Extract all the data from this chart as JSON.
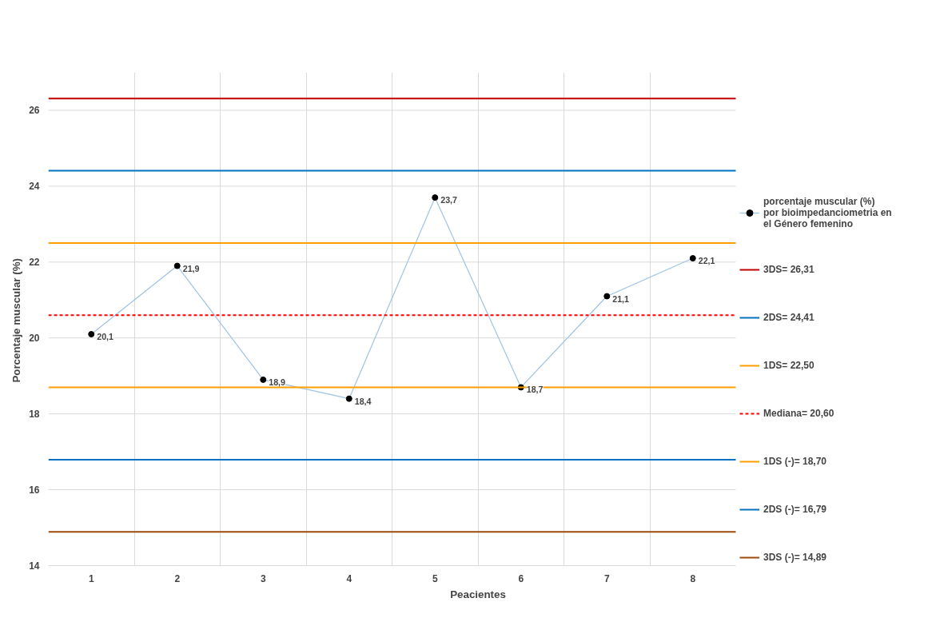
{
  "chart_data": {
    "type": "line",
    "xlabel": "Peacientes",
    "ylabel": "Porcentaje  muscular (%)",
    "categories": [
      "1",
      "2",
      "3",
      "4",
      "5",
      "6",
      "7",
      "8"
    ],
    "series": [
      {
        "name": "porcentaje muscular (%)  por bioimpedanciometria en el Género femenino",
        "color": "#9dc3e6",
        "values": [
          20.1,
          21.9,
          18.9,
          18.4,
          23.7,
          18.7,
          21.1,
          22.1
        ],
        "value_labels": [
          "20,1",
          "21,9",
          "18,9",
          "18,4",
          "23,7",
          "18,7",
          "21,1",
          "22,1"
        ]
      }
    ],
    "ref_lines": [
      {
        "axis": "y",
        "value": 26.31,
        "label": "3DS= 26,31",
        "color": "#c00000",
        "line_style": "solid"
      },
      {
        "axis": "y",
        "value": 24.41,
        "label": "2DS= 24,41",
        "color": "#0070c0",
        "line_style": "solid"
      },
      {
        "axis": "y",
        "value": 22.5,
        "label": "1DS= 22,50",
        "color": "#ffa000",
        "line_style": "solid"
      },
      {
        "axis": "y",
        "value": 20.6,
        "label": "Mediana= 20,60",
        "color": "#ff0000",
        "line_style": "dashed"
      },
      {
        "axis": "y",
        "value": 18.7,
        "label": "1DS (-)= 18,70",
        "color": "#ffa000",
        "line_style": "solid"
      },
      {
        "axis": "y",
        "value": 16.79,
        "label": "2DS (-)= 16,79",
        "color": "#0070c0",
        "line_style": "solid"
      },
      {
        "axis": "y",
        "value": 14.89,
        "label": "3DS (-)= 14,89",
        "color": "#9c4a0b",
        "line_style": "solid"
      }
    ],
    "ylim": [
      14,
      27
    ],
    "yticks": [
      14,
      16,
      18,
      20,
      22,
      24,
      26
    ],
    "grid": true,
    "legend": "right",
    "marker": "circle"
  }
}
